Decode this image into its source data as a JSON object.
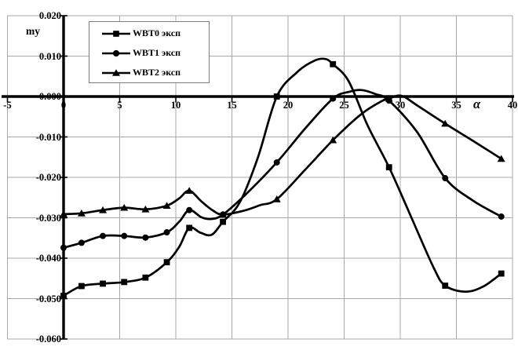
{
  "axes": {
    "y_label": "my",
    "x_label": "α",
    "y_ticks": [
      "0.020",
      "0.010",
      "0.000",
      "-0.010",
      "-0.020",
      "-0.030",
      "-0.040",
      "-0.050",
      "-0.060"
    ],
    "x_ticks": [
      "-5",
      "0",
      "5",
      "10",
      "15",
      "20",
      "25",
      "30",
      "35",
      "40"
    ]
  },
  "legend": {
    "items": [
      {
        "label": "WBT0 эксп",
        "marker": "square"
      },
      {
        "label": "WBT1 эксп",
        "marker": "circle"
      },
      {
        "label": "WBT2 эксп",
        "marker": "triangle"
      }
    ]
  },
  "colors": {
    "line": "#000000",
    "grid": "#a8a8a8",
    "axis": "#000000",
    "background": "#ffffff",
    "legend_border": "#7d7d7d"
  },
  "chart_data": {
    "type": "line",
    "title": "",
    "xlabel": "α",
    "ylabel": "my",
    "xlim": [
      -5,
      40
    ],
    "ylim": [
      -0.06,
      0.02
    ],
    "x_ticks": [
      -5,
      0,
      5,
      10,
      15,
      20,
      25,
      30,
      35,
      40
    ],
    "y_ticks": [
      0.02,
      0.01,
      0.0,
      -0.01,
      -0.02,
      -0.03,
      -0.04,
      -0.05,
      -0.06
    ],
    "grid": true,
    "legend_position": "top-left-inside",
    "series": [
      {
        "name": "WBT0 эксп",
        "marker": "square",
        "points": [
          [
            0,
            -0.0493
          ],
          [
            1.6,
            -0.0469
          ],
          [
            3.5,
            -0.0463
          ],
          [
            5.4,
            -0.0459
          ],
          [
            7.3,
            -0.0448
          ],
          [
            9.2,
            -0.041
          ],
          [
            11.2,
            -0.0325
          ],
          [
            14.2,
            -0.031
          ],
          [
            19,
            0.0
          ],
          [
            24,
            0.008
          ],
          [
            29,
            -0.0175
          ],
          [
            34,
            -0.0468
          ],
          [
            39,
            -0.0438
          ]
        ],
        "curve": [
          [
            0,
            -0.0493
          ],
          [
            1.6,
            -0.0469
          ],
          [
            3.5,
            -0.0463
          ],
          [
            5.4,
            -0.0459
          ],
          [
            7.3,
            -0.0448
          ],
          [
            9.2,
            -0.041
          ],
          [
            10.3,
            -0.0372
          ],
          [
            11.2,
            -0.0325
          ],
          [
            12.2,
            -0.0337
          ],
          [
            13.2,
            -0.0342
          ],
          [
            14.2,
            -0.031
          ],
          [
            15.7,
            -0.0262
          ],
          [
            17.3,
            -0.0152
          ],
          [
            19,
            0.0
          ],
          [
            20.8,
            0.006
          ],
          [
            22.3,
            0.0088
          ],
          [
            23.3,
            0.0093
          ],
          [
            24,
            0.008
          ],
          [
            25.4,
            0.0038
          ],
          [
            27.1,
            -0.0072
          ],
          [
            29,
            -0.0175
          ],
          [
            31,
            -0.03
          ],
          [
            33,
            -0.0425
          ],
          [
            34,
            -0.0468
          ],
          [
            35.8,
            -0.0483
          ],
          [
            37.4,
            -0.047
          ],
          [
            39,
            -0.0438
          ]
        ]
      },
      {
        "name": "WBT1 эксп",
        "marker": "circle",
        "points": [
          [
            0,
            -0.0374
          ],
          [
            1.6,
            -0.0362
          ],
          [
            3.5,
            -0.0345
          ],
          [
            5.4,
            -0.0345
          ],
          [
            7.3,
            -0.0349
          ],
          [
            9.2,
            -0.0336
          ],
          [
            11.2,
            -0.0281
          ],
          [
            14.2,
            -0.0292
          ],
          [
            19,
            -0.0163
          ],
          [
            24,
            -0.0005
          ],
          [
            29,
            -0.001
          ],
          [
            34,
            -0.0202
          ],
          [
            39,
            -0.0297
          ]
        ],
        "curve": [
          [
            0,
            -0.0374
          ],
          [
            1.6,
            -0.0362
          ],
          [
            3.5,
            -0.0345
          ],
          [
            5.4,
            -0.0345
          ],
          [
            7.3,
            -0.0349
          ],
          [
            9.2,
            -0.0336
          ],
          [
            10.3,
            -0.031
          ],
          [
            11.2,
            -0.0281
          ],
          [
            12.3,
            -0.0299
          ],
          [
            13.2,
            -0.0303
          ],
          [
            14.2,
            -0.0292
          ],
          [
            16.2,
            -0.0243
          ],
          [
            19,
            -0.0163
          ],
          [
            21.5,
            -0.008
          ],
          [
            24,
            -0.0005
          ],
          [
            25.5,
            0.0012
          ],
          [
            26.6,
            0.0016
          ],
          [
            27.8,
            0.0006
          ],
          [
            29,
            -0.001
          ],
          [
            31.5,
            -0.0088
          ],
          [
            34,
            -0.0202
          ],
          [
            36.5,
            -0.0258
          ],
          [
            39,
            -0.0297
          ]
        ]
      },
      {
        "name": "WBT2 эксп",
        "marker": "triangle",
        "points": [
          [
            0,
            -0.0291
          ],
          [
            1.6,
            -0.0289
          ],
          [
            3.5,
            -0.0281
          ],
          [
            5.4,
            -0.0275
          ],
          [
            7.3,
            -0.0279
          ],
          [
            9.2,
            -0.027
          ],
          [
            11.2,
            -0.0233
          ],
          [
            14.2,
            -0.0292
          ],
          [
            19,
            -0.0254
          ],
          [
            24,
            -0.0108
          ],
          [
            29,
            -0.0005
          ],
          [
            34,
            -0.0067
          ],
          [
            39,
            -0.0154
          ]
        ],
        "curve": [
          [
            0,
            -0.0291
          ],
          [
            1.6,
            -0.0289
          ],
          [
            3.5,
            -0.0281
          ],
          [
            5.4,
            -0.0275
          ],
          [
            7.3,
            -0.0279
          ],
          [
            9.2,
            -0.027
          ],
          [
            10.3,
            -0.0252
          ],
          [
            11.2,
            -0.0233
          ],
          [
            12.3,
            -0.026
          ],
          [
            13.3,
            -0.0282
          ],
          [
            14.2,
            -0.0292
          ],
          [
            16,
            -0.0283
          ],
          [
            17.5,
            -0.0269
          ],
          [
            19,
            -0.0254
          ],
          [
            21.5,
            -0.0182
          ],
          [
            24,
            -0.0108
          ],
          [
            26.5,
            -0.0044
          ],
          [
            28.3,
            -0.0012
          ],
          [
            29,
            -0.0005
          ],
          [
            30.1,
            0.0002
          ],
          [
            31.5,
            -0.0022
          ],
          [
            34,
            -0.0067
          ],
          [
            36.5,
            -0.011
          ],
          [
            39,
            -0.0154
          ]
        ]
      }
    ]
  }
}
